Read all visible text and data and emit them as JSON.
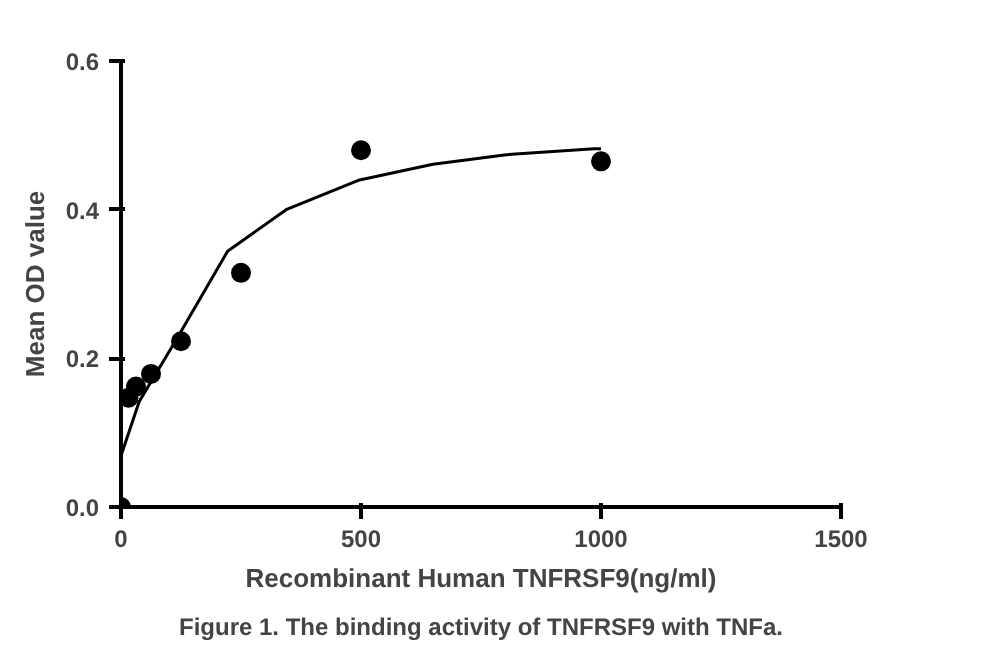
{
  "chart_data": {
    "type": "scatter",
    "title": "Figure 1. The binding activity of TNFRSF9 with TNFa.",
    "xlabel": "Recombinant Human TNFRSF9(ng/ml)",
    "ylabel": "Mean OD value",
    "xlim": [
      0,
      1500
    ],
    "xticks": [
      0,
      500,
      1000,
      1500
    ],
    "ylim": [
      0,
      0.6
    ],
    "yticks": [
      {
        "value": 0,
        "label": "0.0"
      },
      0.2,
      0.4,
      0.6
    ],
    "grid": false,
    "series": [
      {
        "color": "#000000",
        "marker": "circle",
        "x": [
          0,
          15.6,
          31.25,
          62.5,
          125,
          250,
          500,
          1000
        ],
        "values": [
          0.0,
          0.147,
          0.162,
          0.179,
          0.223,
          0.315,
          0.48,
          0.465
        ]
      },
      {
        "color": "#000000",
        "type": "line",
        "line_style": "solid",
        "x": [
          0,
          38,
          115,
          222,
          344,
          497,
          650,
          803,
          986,
          1000
        ],
        "values": [
          0.069,
          0.142,
          0.225,
          0.344,
          0.4,
          0.44,
          0.461,
          0.474,
          0.482,
          0.482
        ]
      }
    ]
  }
}
